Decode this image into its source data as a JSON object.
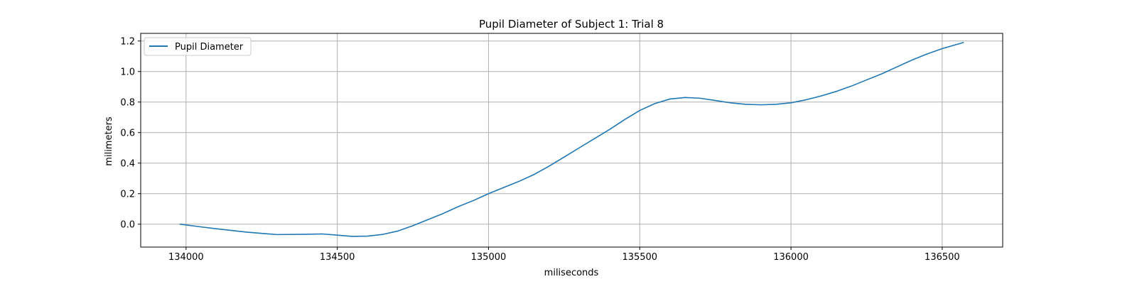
{
  "chart_data": {
    "type": "line",
    "title": "Pupil Diameter of Subject 1: Trial 8",
    "xlabel": "miliseconds",
    "ylabel": "milimeters",
    "xlim": [
      133850,
      136700
    ],
    "ylim": [
      -0.15,
      1.25
    ],
    "xticks": [
      134000,
      134500,
      135000,
      135500,
      136000,
      136500
    ],
    "yticks": [
      0.0,
      0.2,
      0.4,
      0.6,
      0.8,
      1.0,
      1.2
    ],
    "xtick_labels": [
      "134000",
      "134500",
      "135000",
      "135500",
      "136000",
      "136500"
    ],
    "ytick_labels": [
      "0.0",
      "0.2",
      "0.4",
      "0.6",
      "0.8",
      "1.0",
      "1.2"
    ],
    "grid": true,
    "legend_position": "top-left",
    "series": [
      {
        "name": "Pupil Diameter",
        "color": "#1f77b4",
        "x": [
          133980,
          134050,
          134100,
          134200,
          134300,
          134400,
          134450,
          134500,
          134550,
          134600,
          134650,
          134700,
          134750,
          134800,
          134850,
          134900,
          134950,
          135000,
          135050,
          135100,
          135150,
          135200,
          135250,
          135300,
          135350,
          135400,
          135450,
          135500,
          135550,
          135600,
          135650,
          135700,
          135750,
          135800,
          135850,
          135900,
          135950,
          136000,
          136050,
          136100,
          136150,
          136200,
          136250,
          136300,
          136350,
          136400,
          136450,
          136500,
          136570
        ],
        "y": [
          0.0,
          -0.018,
          -0.03,
          -0.052,
          -0.068,
          -0.066,
          -0.064,
          -0.072,
          -0.08,
          -0.078,
          -0.067,
          -0.045,
          -0.01,
          0.03,
          0.07,
          0.115,
          0.155,
          0.2,
          0.24,
          0.28,
          0.325,
          0.38,
          0.44,
          0.5,
          0.56,
          0.62,
          0.685,
          0.745,
          0.79,
          0.82,
          0.83,
          0.825,
          0.81,
          0.795,
          0.785,
          0.782,
          0.785,
          0.795,
          0.815,
          0.84,
          0.87,
          0.905,
          0.945,
          0.985,
          1.03,
          1.075,
          1.115,
          1.15,
          1.19
        ]
      }
    ]
  }
}
